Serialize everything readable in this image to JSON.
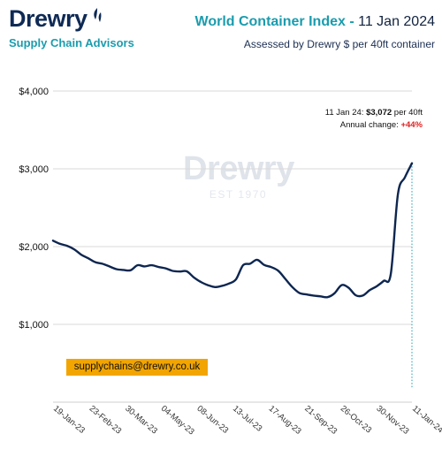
{
  "brand": {
    "logo_text": "Drewry",
    "tagline": "Supply Chain Advisors",
    "logo_icon": "flame-swoosh-icon"
  },
  "header": {
    "title_bold": "World Container Index -",
    "title_date": "11 Jan 2024",
    "subtitle": "Assessed by Drewry  $ per 40ft container"
  },
  "watermark": {
    "word": "Drewry",
    "sub": "EST 1970"
  },
  "annotation": {
    "line1_prefix": "11 Jan 24: ",
    "line1_value": "$3,072",
    "line1_suffix": " per 40ft",
    "line2_prefix": "Annual change: ",
    "line2_value": "+44%"
  },
  "contact": {
    "email": "supplychains@drewry.co.uk"
  },
  "colors": {
    "line": "#0d2650",
    "accent": "#1a9cae",
    "email_bg": "#f2a500",
    "change": "#dd2222"
  },
  "chart_data": {
    "type": "line",
    "title": "World Container Index",
    "xlabel": "",
    "ylabel": "$ per 40ft container",
    "ylim": [
      0,
      4000
    ],
    "xlim": [
      "2023-01-19",
      "2024-01-11"
    ],
    "grid": true,
    "y_ticks": [
      "$1,000",
      "$2,000",
      "$3,000",
      "$4,000"
    ],
    "y_tick_values": [
      1000,
      2000,
      3000,
      4000
    ],
    "x_ticks": [
      "19-Jan-23",
      "23-Feb-23",
      "30-Mar-23",
      "04-May-23",
      "08-Jun-23",
      "13-Jul-23",
      "17-Aug-23",
      "21-Sep-23",
      "26-Oct-23",
      "30-Nov-23",
      "11-Jan-24"
    ],
    "series": [
      {
        "name": "World Container Index",
        "x": [
          "2023-01-19",
          "2023-01-26",
          "2023-02-02",
          "2023-02-09",
          "2023-02-16",
          "2023-02-23",
          "2023-03-02",
          "2023-03-09",
          "2023-03-16",
          "2023-03-23",
          "2023-03-30",
          "2023-04-06",
          "2023-04-13",
          "2023-04-20",
          "2023-04-27",
          "2023-05-04",
          "2023-05-11",
          "2023-05-18",
          "2023-05-25",
          "2023-06-01",
          "2023-06-08",
          "2023-06-15",
          "2023-06-22",
          "2023-06-29",
          "2023-07-06",
          "2023-07-13",
          "2023-07-20",
          "2023-07-27",
          "2023-08-03",
          "2023-08-10",
          "2023-08-17",
          "2023-08-24",
          "2023-08-31",
          "2023-09-07",
          "2023-09-14",
          "2023-09-21",
          "2023-09-28",
          "2023-10-05",
          "2023-10-12",
          "2023-10-19",
          "2023-10-26",
          "2023-11-02",
          "2023-11-09",
          "2023-11-16",
          "2023-11-23",
          "2023-11-30",
          "2023-12-07",
          "2023-12-14",
          "2023-12-21",
          "2023-12-28",
          "2024-01-04",
          "2024-01-11"
        ],
        "values": [
          2076,
          2035,
          2010,
          1965,
          1897,
          1850,
          1800,
          1780,
          1745,
          1710,
          1700,
          1695,
          1760,
          1745,
          1760,
          1738,
          1720,
          1688,
          1680,
          1682,
          1605,
          1545,
          1505,
          1480,
          1495,
          1525,
          1580,
          1760,
          1780,
          1830,
          1765,
          1736,
          1690,
          1585,
          1480,
          1405,
          1385,
          1370,
          1360,
          1350,
          1400,
          1505,
          1470,
          1375,
          1370,
          1440,
          1490,
          1560,
          1650,
          2670,
          2890,
          3072
        ]
      }
    ],
    "annotations": [
      {
        "text": "11 Jan 24: $3,072 per 40ft",
        "x": "2024-01-11"
      },
      {
        "text": "Annual change: +44%",
        "x": "2024-01-11"
      }
    ]
  }
}
